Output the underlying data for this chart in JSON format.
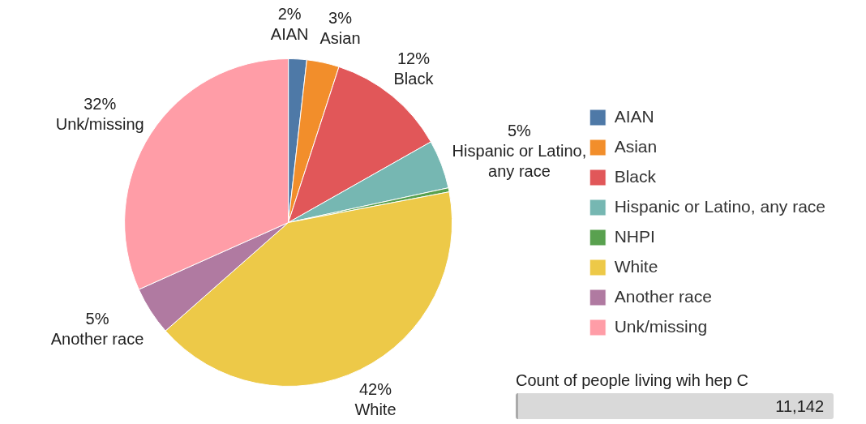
{
  "chart_data": [
    {
      "type": "pie",
      "categories": [
        "AIAN",
        "Asian",
        "Black",
        "Hispanic or Latino, any race",
        "NHPI",
        "White",
        "Another race",
        "Unk/missing"
      ],
      "values": [
        1.8,
        3.2,
        11.8,
        4.8,
        0.4,
        41.5,
        4.8,
        31.7
      ],
      "value_labels": [
        "2%",
        "3%",
        "12%",
        "5%",
        null,
        "42%",
        "5%",
        "32%"
      ],
      "colors": [
        "#4e79a7",
        "#f28e2b",
        "#e15759",
        "#76b7b2",
        "#59a14f",
        "#edc948",
        "#b07aa1",
        "#ff9da7"
      ],
      "legend": "right"
    },
    {
      "type": "other",
      "title": "Count of people living wih hep C",
      "annotations": [
        "11,142"
      ]
    }
  ]
}
